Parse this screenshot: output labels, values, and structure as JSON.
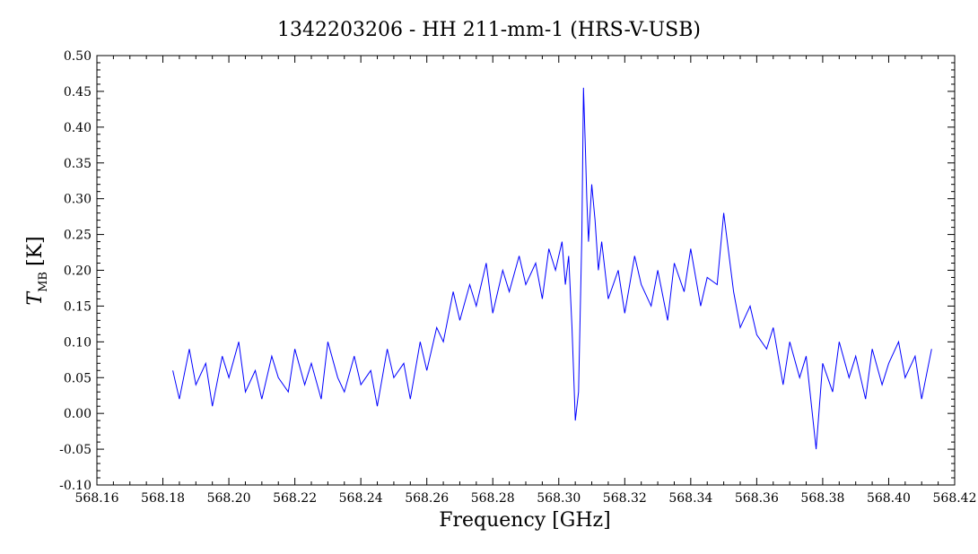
{
  "chart_data": {
    "type": "line",
    "title": "1342203206 - HH 211-mm-1 (HRS-V-USB)",
    "xlabel": "Frequency [GHz]",
    "ylabel": {
      "symbol": "T",
      "subscript": "MB",
      "unit": "[K]"
    },
    "xlim": [
      568.16,
      568.42
    ],
    "ylim": [
      -0.1,
      0.5
    ],
    "xticks": [
      "568.16",
      "568.18",
      "568.20",
      "568.22",
      "568.24",
      "568.26",
      "568.28",
      "568.30",
      "568.32",
      "568.34",
      "568.36",
      "568.38",
      "568.40",
      "568.42"
    ],
    "yticks": [
      "-0.10",
      "-0.05",
      "0.00",
      "0.05",
      "0.10",
      "0.15",
      "0.20",
      "0.25",
      "0.30",
      "0.35",
      "0.40",
      "0.45",
      "0.50"
    ],
    "grid": false,
    "series": [
      {
        "color": "#0000ff",
        "x": [
          568.183,
          568.185,
          568.188,
          568.19,
          568.193,
          568.195,
          568.198,
          568.2,
          568.203,
          568.205,
          568.208,
          568.21,
          568.213,
          568.215,
          568.218,
          568.22,
          568.223,
          568.225,
          568.228,
          568.23,
          568.233,
          568.235,
          568.238,
          568.24,
          568.243,
          568.245,
          568.248,
          568.25,
          568.253,
          568.255,
          568.258,
          568.26,
          568.263,
          568.265,
          568.268,
          568.27,
          568.273,
          568.275,
          568.278,
          568.28,
          568.283,
          568.285,
          568.288,
          568.29,
          568.293,
          568.295,
          568.297,
          568.299,
          568.301,
          568.302,
          568.303,
          568.304,
          568.305,
          568.306,
          568.307,
          568.3075,
          568.308,
          568.3085,
          568.309,
          568.31,
          568.311,
          568.312,
          568.313,
          568.315,
          568.318,
          568.32,
          568.323,
          568.325,
          568.328,
          568.33,
          568.333,
          568.335,
          568.338,
          568.34,
          568.343,
          568.345,
          568.348,
          568.35,
          568.353,
          568.355,
          568.358,
          568.36,
          568.363,
          568.365,
          568.368,
          568.37,
          568.373,
          568.375,
          568.378,
          568.38,
          568.383,
          568.385,
          568.388,
          568.39,
          568.393,
          568.395,
          568.398,
          568.4,
          568.403,
          568.405,
          568.408,
          568.41,
          568.413
        ],
        "y": [
          0.06,
          0.02,
          0.09,
          0.04,
          0.07,
          0.01,
          0.08,
          0.05,
          0.1,
          0.03,
          0.06,
          0.02,
          0.08,
          0.05,
          0.03,
          0.09,
          0.04,
          0.07,
          0.02,
          0.1,
          0.05,
          0.03,
          0.08,
          0.04,
          0.06,
          0.01,
          0.09,
          0.05,
          0.07,
          0.02,
          0.1,
          0.06,
          0.12,
          0.1,
          0.17,
          0.13,
          0.18,
          0.15,
          0.21,
          0.14,
          0.2,
          0.17,
          0.22,
          0.18,
          0.21,
          0.16,
          0.23,
          0.2,
          0.24,
          0.18,
          0.22,
          0.12,
          -0.01,
          0.03,
          0.25,
          0.455,
          0.38,
          0.3,
          0.24,
          0.32,
          0.27,
          0.2,
          0.24,
          0.16,
          0.2,
          0.14,
          0.22,
          0.18,
          0.15,
          0.2,
          0.13,
          0.21,
          0.17,
          0.23,
          0.15,
          0.19,
          0.18,
          0.28,
          0.17,
          0.12,
          0.15,
          0.11,
          0.09,
          0.12,
          0.04,
          0.1,
          0.05,
          0.08,
          -0.05,
          0.07,
          0.03,
          0.1,
          0.05,
          0.08,
          0.02,
          0.09,
          0.04,
          0.07,
          0.1,
          0.05,
          0.08,
          0.02,
          0.09
        ]
      }
    ]
  }
}
